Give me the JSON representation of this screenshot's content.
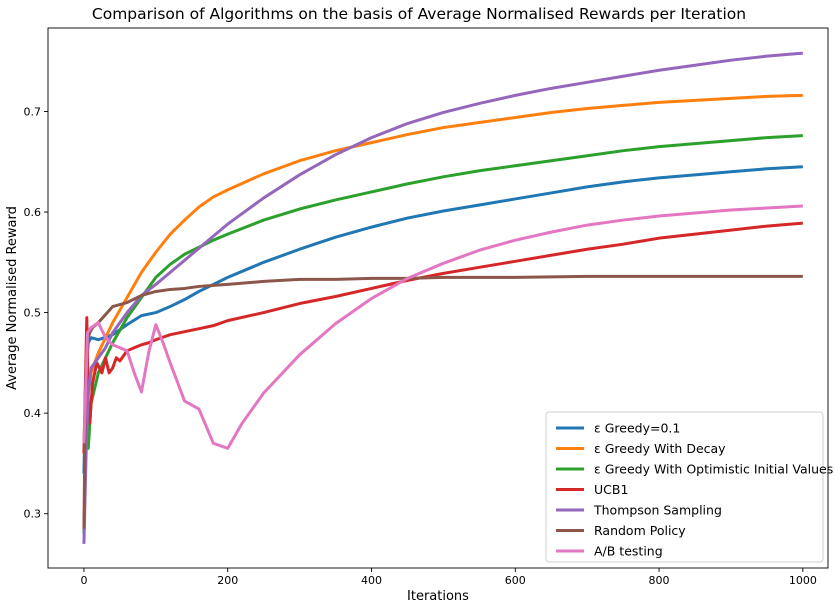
{
  "chart_data": {
    "type": "line",
    "title": "Comparison of Algorithms on the basis of Average Normalised Rewards per Iteration",
    "xlabel": "Iterations",
    "ylabel": "Average Normalised Reward",
    "xlim": [
      -50,
      1035
    ],
    "ylim": [
      0.246,
      0.783
    ],
    "xticks": [
      0,
      200,
      400,
      600,
      800,
      1000
    ],
    "yticks": [
      0.3,
      0.4,
      0.5,
      0.6,
      0.7
    ],
    "grid": false,
    "legend_position": "lower-right",
    "series": [
      {
        "name": "ε Greedy=0.1",
        "color": "#1f77b4",
        "points": [
          [
            0,
            0.34
          ],
          [
            3,
            0.44
          ],
          [
            6,
            0.47
          ],
          [
            10,
            0.475
          ],
          [
            20,
            0.473
          ],
          [
            40,
            0.478
          ],
          [
            60,
            0.488
          ],
          [
            80,
            0.497
          ],
          [
            100,
            0.5
          ],
          [
            120,
            0.506
          ],
          [
            140,
            0.513
          ],
          [
            160,
            0.521
          ],
          [
            180,
            0.528
          ],
          [
            200,
            0.535
          ],
          [
            250,
            0.55
          ],
          [
            300,
            0.563
          ],
          [
            350,
            0.575
          ],
          [
            400,
            0.585
          ],
          [
            450,
            0.594
          ],
          [
            500,
            0.601
          ],
          [
            550,
            0.607
          ],
          [
            600,
            0.613
          ],
          [
            650,
            0.619
          ],
          [
            700,
            0.625
          ],
          [
            750,
            0.63
          ],
          [
            800,
            0.634
          ],
          [
            850,
            0.637
          ],
          [
            900,
            0.64
          ],
          [
            950,
            0.643
          ],
          [
            1000,
            0.645
          ]
        ]
      },
      {
        "name": "ε Greedy With Decay",
        "color": "#ff7f0e",
        "points": [
          [
            0,
            0.36
          ],
          [
            3,
            0.39
          ],
          [
            6,
            0.42
          ],
          [
            10,
            0.44
          ],
          [
            20,
            0.46
          ],
          [
            30,
            0.475
          ],
          [
            40,
            0.49
          ],
          [
            60,
            0.515
          ],
          [
            80,
            0.54
          ],
          [
            100,
            0.56
          ],
          [
            120,
            0.578
          ],
          [
            140,
            0.592
          ],
          [
            160,
            0.605
          ],
          [
            180,
            0.615
          ],
          [
            200,
            0.622
          ],
          [
            250,
            0.638
          ],
          [
            300,
            0.651
          ],
          [
            350,
            0.661
          ],
          [
            400,
            0.669
          ],
          [
            450,
            0.677
          ],
          [
            500,
            0.684
          ],
          [
            550,
            0.689
          ],
          [
            600,
            0.694
          ],
          [
            650,
            0.699
          ],
          [
            700,
            0.703
          ],
          [
            750,
            0.706
          ],
          [
            800,
            0.709
          ],
          [
            850,
            0.711
          ],
          [
            900,
            0.713
          ],
          [
            950,
            0.715
          ],
          [
            1000,
            0.716
          ]
        ]
      },
      {
        "name": "ε Greedy With Optimistic Initial Values",
        "color": "#2ca02c",
        "points": [
          [
            0,
            0.28
          ],
          [
            3,
            0.38
          ],
          [
            6,
            0.365
          ],
          [
            10,
            0.41
          ],
          [
            20,
            0.44
          ],
          [
            30,
            0.455
          ],
          [
            40,
            0.47
          ],
          [
            60,
            0.495
          ],
          [
            80,
            0.515
          ],
          [
            100,
            0.535
          ],
          [
            120,
            0.548
          ],
          [
            140,
            0.558
          ],
          [
            160,
            0.565
          ],
          [
            180,
            0.572
          ],
          [
            200,
            0.578
          ],
          [
            250,
            0.592
          ],
          [
            300,
            0.603
          ],
          [
            350,
            0.612
          ],
          [
            400,
            0.62
          ],
          [
            450,
            0.628
          ],
          [
            500,
            0.635
          ],
          [
            550,
            0.641
          ],
          [
            600,
            0.646
          ],
          [
            650,
            0.651
          ],
          [
            700,
            0.656
          ],
          [
            750,
            0.661
          ],
          [
            800,
            0.665
          ],
          [
            850,
            0.668
          ],
          [
            900,
            0.671
          ],
          [
            950,
            0.674
          ],
          [
            1000,
            0.676
          ]
        ]
      },
      {
        "name": "UCB1",
        "color": "#d62728",
        "points": [
          [
            0,
            0.36
          ],
          [
            2,
            0.43
          ],
          [
            4,
            0.495
          ],
          [
            6,
            0.41
          ],
          [
            8,
            0.39
          ],
          [
            12,
            0.43
          ],
          [
            18,
            0.45
          ],
          [
            25,
            0.44
          ],
          [
            30,
            0.455
          ],
          [
            35,
            0.44
          ],
          [
            40,
            0.445
          ],
          [
            45,
            0.455
          ],
          [
            50,
            0.452
          ],
          [
            60,
            0.462
          ],
          [
            70,
            0.465
          ],
          [
            80,
            0.468
          ],
          [
            90,
            0.47
          ],
          [
            100,
            0.473
          ],
          [
            120,
            0.478
          ],
          [
            140,
            0.481
          ],
          [
            160,
            0.484
          ],
          [
            180,
            0.487
          ],
          [
            200,
            0.492
          ],
          [
            250,
            0.5
          ],
          [
            300,
            0.509
          ],
          [
            350,
            0.516
          ],
          [
            400,
            0.524
          ],
          [
            450,
            0.532
          ],
          [
            500,
            0.539
          ],
          [
            550,
            0.545
          ],
          [
            600,
            0.551
          ],
          [
            650,
            0.557
          ],
          [
            700,
            0.563
          ],
          [
            750,
            0.568
          ],
          [
            800,
            0.574
          ],
          [
            850,
            0.578
          ],
          [
            900,
            0.582
          ],
          [
            950,
            0.586
          ],
          [
            1000,
            0.589
          ]
        ]
      },
      {
        "name": "Thompson Sampling",
        "color": "#9467bd",
        "points": [
          [
            0,
            0.27
          ],
          [
            3,
            0.36
          ],
          [
            6,
            0.42
          ],
          [
            10,
            0.445
          ],
          [
            20,
            0.455
          ],
          [
            30,
            0.465
          ],
          [
            40,
            0.48
          ],
          [
            60,
            0.5
          ],
          [
            80,
            0.517
          ],
          [
            100,
            0.528
          ],
          [
            120,
            0.54
          ],
          [
            140,
            0.552
          ],
          [
            160,
            0.564
          ],
          [
            180,
            0.576
          ],
          [
            200,
            0.588
          ],
          [
            250,
            0.614
          ],
          [
            300,
            0.637
          ],
          [
            350,
            0.657
          ],
          [
            400,
            0.674
          ],
          [
            450,
            0.688
          ],
          [
            500,
            0.699
          ],
          [
            550,
            0.708
          ],
          [
            600,
            0.716
          ],
          [
            650,
            0.723
          ],
          [
            700,
            0.729
          ],
          [
            750,
            0.735
          ],
          [
            800,
            0.741
          ],
          [
            850,
            0.746
          ],
          [
            900,
            0.751
          ],
          [
            950,
            0.755
          ],
          [
            1000,
            0.758
          ]
        ]
      },
      {
        "name": "Random Policy",
        "color": "#8c564b",
        "points": [
          [
            0,
            0.285
          ],
          [
            2,
            0.42
          ],
          [
            4,
            0.47
          ],
          [
            8,
            0.48
          ],
          [
            12,
            0.485
          ],
          [
            20,
            0.49
          ],
          [
            30,
            0.498
          ],
          [
            40,
            0.506
          ],
          [
            50,
            0.508
          ],
          [
            60,
            0.51
          ],
          [
            80,
            0.517
          ],
          [
            100,
            0.521
          ],
          [
            120,
            0.523
          ],
          [
            140,
            0.524
          ],
          [
            160,
            0.526
          ],
          [
            180,
            0.527
          ],
          [
            200,
            0.528
          ],
          [
            250,
            0.531
          ],
          [
            300,
            0.533
          ],
          [
            350,
            0.533
          ],
          [
            400,
            0.534
          ],
          [
            450,
            0.534
          ],
          [
            500,
            0.535
          ],
          [
            550,
            0.535
          ],
          [
            600,
            0.535
          ],
          [
            700,
            0.536
          ],
          [
            800,
            0.536
          ],
          [
            900,
            0.536
          ],
          [
            1000,
            0.536
          ]
        ]
      },
      {
        "name": "A/B testing",
        "color": "#e377c2",
        "points": [
          [
            0,
            0.37
          ],
          [
            5,
            0.48
          ],
          [
            10,
            0.485
          ],
          [
            20,
            0.49
          ],
          [
            30,
            0.475
          ],
          [
            40,
            0.468
          ],
          [
            50,
            0.465
          ],
          [
            60,
            0.462
          ],
          [
            70,
            0.44
          ],
          [
            80,
            0.421
          ],
          [
            90,
            0.46
          ],
          [
            100,
            0.488
          ],
          [
            110,
            0.47
          ],
          [
            120,
            0.45
          ],
          [
            140,
            0.412
          ],
          [
            160,
            0.404
          ],
          [
            180,
            0.37
          ],
          [
            200,
            0.365
          ],
          [
            220,
            0.39
          ],
          [
            250,
            0.42
          ],
          [
            300,
            0.458
          ],
          [
            350,
            0.489
          ],
          [
            400,
            0.514
          ],
          [
            450,
            0.534
          ],
          [
            500,
            0.549
          ],
          [
            550,
            0.562
          ],
          [
            600,
            0.572
          ],
          [
            650,
            0.58
          ],
          [
            700,
            0.587
          ],
          [
            750,
            0.592
          ],
          [
            800,
            0.596
          ],
          [
            850,
            0.599
          ],
          [
            900,
            0.602
          ],
          [
            950,
            0.604
          ],
          [
            1000,
            0.606
          ]
        ]
      }
    ]
  }
}
